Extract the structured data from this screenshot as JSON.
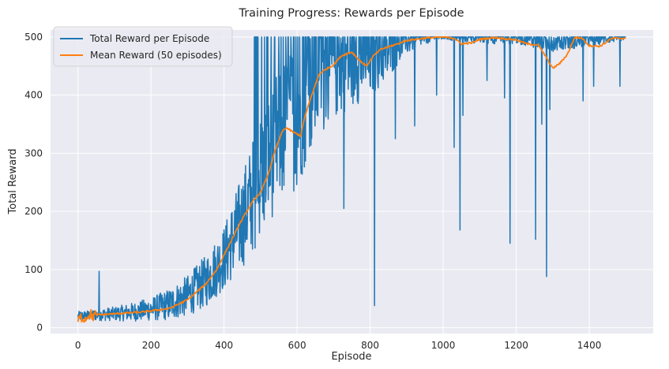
{
  "chart_data": {
    "type": "line",
    "title": "Training Progress: Rewards per Episode",
    "xlabel": "Episode",
    "ylabel": "Total Reward",
    "xlim": [
      -75,
      1575
    ],
    "ylim": [
      -10,
      512
    ],
    "xticks": [
      0,
      200,
      400,
      600,
      800,
      1000,
      1200,
      1400
    ],
    "yticks": [
      0,
      100,
      200,
      300,
      400,
      500
    ],
    "grid": true,
    "legend_position": "top-left",
    "series": [
      {
        "name": "Total Reward per Episode",
        "color": "#1f77b4",
        "generator": "noisy",
        "envelope": [
          [
            0,
            20
          ],
          [
            50,
            22
          ],
          [
            100,
            24
          ],
          [
            150,
            27
          ],
          [
            200,
            32
          ],
          [
            250,
            40
          ],
          [
            300,
            55
          ],
          [
            350,
            80
          ],
          [
            400,
            120
          ],
          [
            450,
            185
          ],
          [
            500,
            260
          ],
          [
            550,
            330
          ],
          [
            600,
            370
          ],
          [
            650,
            430
          ],
          [
            700,
            455
          ],
          [
            750,
            460
          ],
          [
            800,
            455
          ],
          [
            850,
            470
          ],
          [
            900,
            490
          ],
          [
            950,
            500
          ],
          [
            1000,
            500
          ],
          [
            1100,
            500
          ],
          [
            1200,
            500
          ],
          [
            1300,
            490
          ],
          [
            1400,
            495
          ],
          [
            1500,
            500
          ]
        ],
        "noise": [
          [
            0,
            8
          ],
          [
            100,
            12
          ],
          [
            200,
            20
          ],
          [
            300,
            35
          ],
          [
            400,
            55
          ],
          [
            500,
            110
          ],
          [
            600,
            130
          ],
          [
            700,
            100
          ],
          [
            800,
            60
          ],
          [
            900,
            20
          ],
          [
            1000,
            5
          ],
          [
            1100,
            12
          ],
          [
            1200,
            12
          ],
          [
            1300,
            15
          ],
          [
            1400,
            12
          ],
          [
            1500,
            5
          ]
        ],
        "cap": 500,
        "spikes": [
          [
            58,
            97
          ],
          [
            812,
            38
          ],
          [
            1046,
            168
          ],
          [
            1183,
            145
          ],
          [
            1283,
            88
          ],
          [
            1253,
            152
          ],
          [
            1030,
            310
          ],
          [
            1054,
            365
          ],
          [
            1120,
            425
          ],
          [
            1168,
            395
          ],
          [
            1270,
            350
          ],
          [
            1292,
            375
          ],
          [
            1383,
            390
          ],
          [
            1412,
            415
          ],
          [
            1484,
            415
          ],
          [
            869,
            325
          ],
          [
            922,
            347
          ],
          [
            982,
            400
          ],
          [
            728,
            205
          ]
        ]
      },
      {
        "name": "Mean Reward (50 episodes)",
        "color": "#ff7f0e",
        "generator": "rolling",
        "points": [
          [
            0,
            12
          ],
          [
            10,
            18
          ],
          [
            20,
            15
          ],
          [
            30,
            25
          ],
          [
            40,
            20
          ],
          [
            50,
            22
          ],
          [
            100,
            24
          ],
          [
            150,
            26
          ],
          [
            180,
            27
          ],
          [
            200,
            29
          ],
          [
            250,
            33
          ],
          [
            300,
            48
          ],
          [
            350,
            75
          ],
          [
            380,
            100
          ],
          [
            400,
            125
          ],
          [
            420,
            150
          ],
          [
            440,
            175
          ],
          [
            460,
            198
          ],
          [
            480,
            218
          ],
          [
            500,
            233
          ],
          [
            520,
            262
          ],
          [
            540,
            305
          ],
          [
            560,
            338
          ],
          [
            570,
            344
          ],
          [
            590,
            336
          ],
          [
            610,
            330
          ],
          [
            620,
            360
          ],
          [
            640,
            400
          ],
          [
            660,
            436
          ],
          [
            680,
            445
          ],
          [
            700,
            452
          ],
          [
            720,
            467
          ],
          [
            735,
            471
          ],
          [
            750,
            474
          ],
          [
            770,
            460
          ],
          [
            790,
            450
          ],
          [
            810,
            468
          ],
          [
            830,
            479
          ],
          [
            850,
            483
          ],
          [
            870,
            487
          ],
          [
            900,
            494
          ],
          [
            950,
            498
          ],
          [
            1000,
            500
          ],
          [
            1030,
            498
          ],
          [
            1050,
            488
          ],
          [
            1080,
            490
          ],
          [
            1100,
            496
          ],
          [
            1140,
            499
          ],
          [
            1200,
            495
          ],
          [
            1230,
            488
          ],
          [
            1260,
            486
          ],
          [
            1280,
            467
          ],
          [
            1300,
            446
          ],
          [
            1320,
            455
          ],
          [
            1340,
            470
          ],
          [
            1360,
            499
          ],
          [
            1380,
            498
          ],
          [
            1400,
            485
          ],
          [
            1430,
            484
          ],
          [
            1460,
            497
          ],
          [
            1480,
            498
          ],
          [
            1500,
            497
          ]
        ]
      }
    ]
  }
}
